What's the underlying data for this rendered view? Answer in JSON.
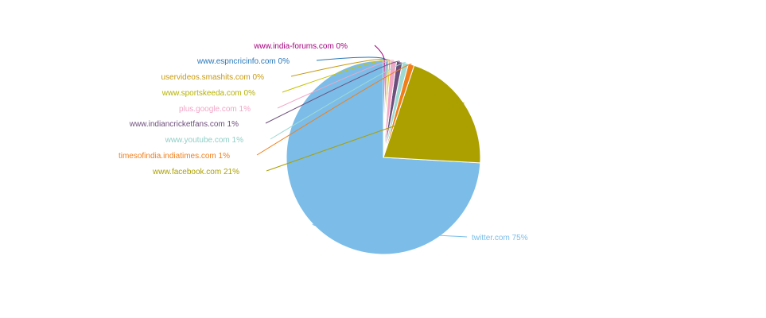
{
  "chart_data": {
    "type": "pie",
    "title": "",
    "slices": [
      {
        "label": "twitter.com",
        "value": 75,
        "pct_label": "75%",
        "color": "#7bbde8"
      },
      {
        "label": "www.facebook.com",
        "value": 21,
        "pct_label": "21%",
        "color": "#aba000"
      },
      {
        "label": "timesofindia.indiatimes.com",
        "value": 1,
        "pct_label": "1%",
        "color": "#f07f1a"
      },
      {
        "label": "www.youtube.com",
        "value": 1,
        "pct_label": "1%",
        "color": "#9fdad2"
      },
      {
        "label": "www.indiancricketfans.com",
        "value": 1,
        "pct_label": "1%",
        "color": "#6e4f7c"
      },
      {
        "label": "plus.google.com",
        "value": 1,
        "pct_label": "1%",
        "color": "#f2a6c6"
      },
      {
        "label": "www.sportskeeda.com",
        "value": 0.3,
        "pct_label": "0%",
        "color": "#c6c300"
      },
      {
        "label": "uservideos.smashits.com",
        "value": 0.3,
        "pct_label": "0%",
        "color": "#c79a10"
      },
      {
        "label": "www.espncricinfo.com",
        "value": 0.3,
        "pct_label": "0%",
        "color": "#2a78b8"
      },
      {
        "label": "www.india-forums.com",
        "value": 0.3,
        "pct_label": "0%",
        "color": "#a4007e"
      }
    ]
  }
}
